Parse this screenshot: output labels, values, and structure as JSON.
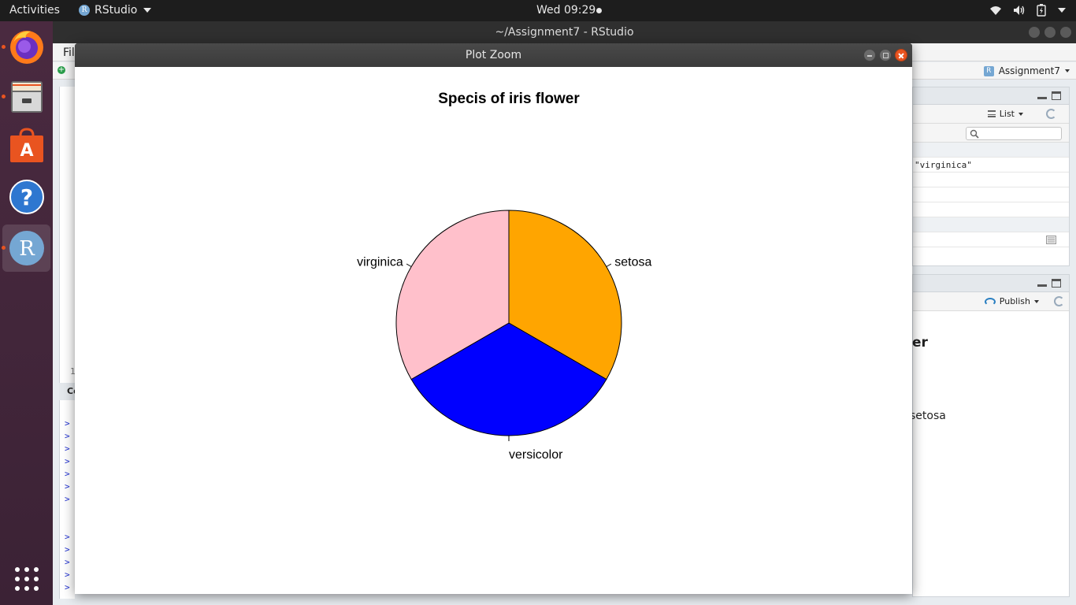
{
  "topbar": {
    "activities": "Activities",
    "app_name": "RStudio",
    "app_icon_letter": "R",
    "clock": "Wed 09:29"
  },
  "dock": {
    "items": [
      {
        "name": "firefox-icon",
        "running": true
      },
      {
        "name": "files-icon",
        "running": true
      },
      {
        "name": "software-center-icon",
        "running": false
      },
      {
        "name": "help-icon",
        "running": false
      },
      {
        "name": "rstudio-icon",
        "running": true,
        "active": true
      },
      {
        "name": "show-apps-icon",
        "running": false
      }
    ]
  },
  "rstudio": {
    "window_title": "~/Assignment7 - RStudio",
    "menu_file_partial": "Fil",
    "project_name": "Assignment7",
    "editor_line_number": "1",
    "console_header_partial": "Co",
    "console_prompt": ">",
    "env_list_label": "List",
    "env_value_fragment": "\"virginica\"",
    "viewer_publish_label": "Publish",
    "viewer_title_fragment": "er",
    "viewer_label_fragment": "setosa"
  },
  "plot_zoom": {
    "window_title": "Plot Zoom"
  },
  "chart_data": {
    "type": "pie",
    "title": "Specis of iris flower",
    "categories": [
      "setosa",
      "versicolor",
      "virginica"
    ],
    "values": [
      50,
      50,
      50
    ],
    "colors": [
      "#FFA500",
      "#0000FF",
      "#FFC0CB"
    ],
    "start": "12 o'clock",
    "direction": "clockwise"
  }
}
